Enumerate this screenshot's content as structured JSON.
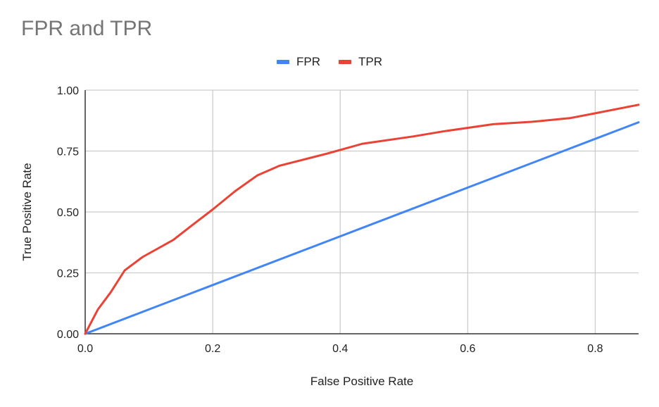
{
  "chart": {
    "title": "FPR and TPR",
    "legend": [
      {
        "label": "FPR",
        "color": "#4285f4"
      },
      {
        "label": "TPR",
        "color": "#ea4335"
      }
    ],
    "xlabel": "False Positive Rate",
    "ylabel": "True Positive Rate",
    "x_ticks": [
      "0.0",
      "0.2",
      "0.4",
      "0.6",
      "0.8"
    ],
    "y_ticks": [
      "0.00",
      "0.25",
      "0.50",
      "0.75",
      "1.00"
    ]
  },
  "chart_data": {
    "type": "line",
    "title": "FPR and TPR",
    "xlabel": "False Positive Rate",
    "ylabel": "True Positive Rate",
    "xlim": [
      0,
      0.868
    ],
    "ylim": [
      0,
      1
    ],
    "x_ticks": [
      0,
      0.2,
      0.4,
      0.6,
      0.8
    ],
    "y_ticks": [
      0,
      0.25,
      0.5,
      0.75,
      1.0
    ],
    "grid": true,
    "legend_position": "top",
    "series": [
      {
        "name": "FPR",
        "color": "#4285f4",
        "x": [
          0,
          0.2,
          0.4,
          0.6,
          0.8,
          0.868
        ],
        "y": [
          0,
          0.2,
          0.4,
          0.6,
          0.8,
          0.868
        ]
      },
      {
        "name": "TPR",
        "color": "#ea4335",
        "x": [
          0,
          0.02,
          0.04,
          0.062,
          0.09,
          0.138,
          0.17,
          0.2,
          0.235,
          0.27,
          0.305,
          0.38,
          0.435,
          0.515,
          0.56,
          0.64,
          0.7,
          0.76,
          0.8,
          0.868
        ],
        "y": [
          0,
          0.1,
          0.17,
          0.26,
          0.315,
          0.385,
          0.45,
          0.51,
          0.585,
          0.65,
          0.69,
          0.74,
          0.78,
          0.81,
          0.83,
          0.86,
          0.87,
          0.885,
          0.905,
          0.94
        ]
      }
    ]
  }
}
